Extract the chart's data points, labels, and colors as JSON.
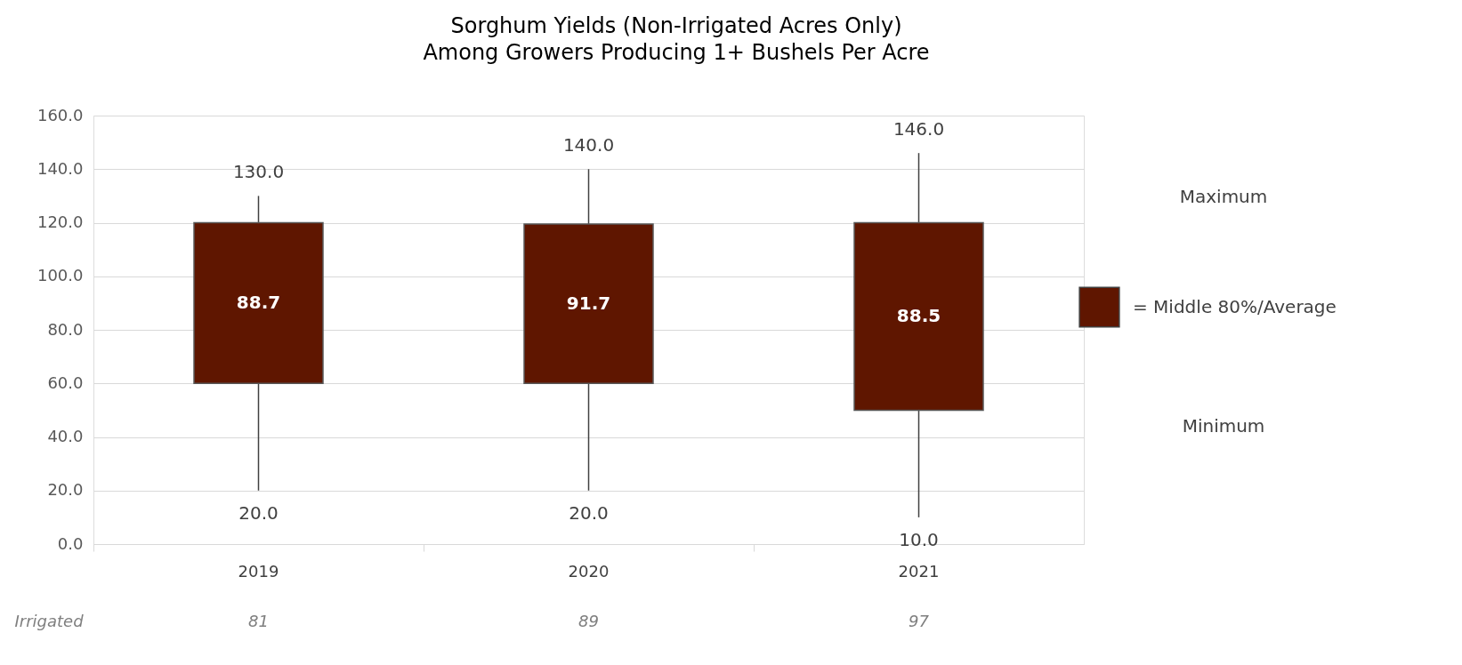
{
  "chart_data": {
    "type": "candlestick",
    "title": "Sorghum Yields (Non-Irrigated Acres Only)\nAmong Growers Producing 1+ Bushels Per Acre",
    "categories": [
      "2019",
      "2020",
      "2021"
    ],
    "series": [
      {
        "name": "= Middle 80%/Average",
        "color": "#5f1600",
        "ohlc": [
          [
            60,
            130,
            20,
            120
          ],
          [
            60,
            140,
            20,
            119.5
          ],
          [
            50,
            146,
            10,
            120
          ]
        ]
      }
    ],
    "ylim": [
      0,
      160
    ],
    "yticks": [
      {
        "value": 0,
        "label": "0.0"
      },
      {
        "value": 20,
        "label": "20.0"
      },
      {
        "value": 40,
        "label": "40.0"
      },
      {
        "value": 60,
        "label": "60.0"
      },
      {
        "value": 80,
        "label": "80.0"
      },
      {
        "value": 100,
        "label": "100.0"
      },
      {
        "value": 120,
        "label": "120.0"
      },
      {
        "value": 140,
        "label": "140.0"
      },
      {
        "value": 160,
        "label": "160.0"
      }
    ],
    "grid": "y",
    "legend": "right",
    "annotations": [
      "Maximum",
      "Minimum",
      "Irrigated",
      "81",
      "89",
      "97",
      "88.7",
      "91.7",
      "88.5",
      {
        "text": "130.0",
        "x": "2019",
        "y": 130
      },
      {
        "text": "140.0",
        "x": "2020",
        "y": 140
      },
      {
        "text": "146.0",
        "x": "2021",
        "y": 146
      },
      {
        "text": "20.0",
        "x": "2019",
        "y": 20
      },
      {
        "text": "20.0",
        "x": "2020",
        "y": 20
      },
      {
        "text": "10.0",
        "x": "2021",
        "y": 10
      }
    ]
  }
}
